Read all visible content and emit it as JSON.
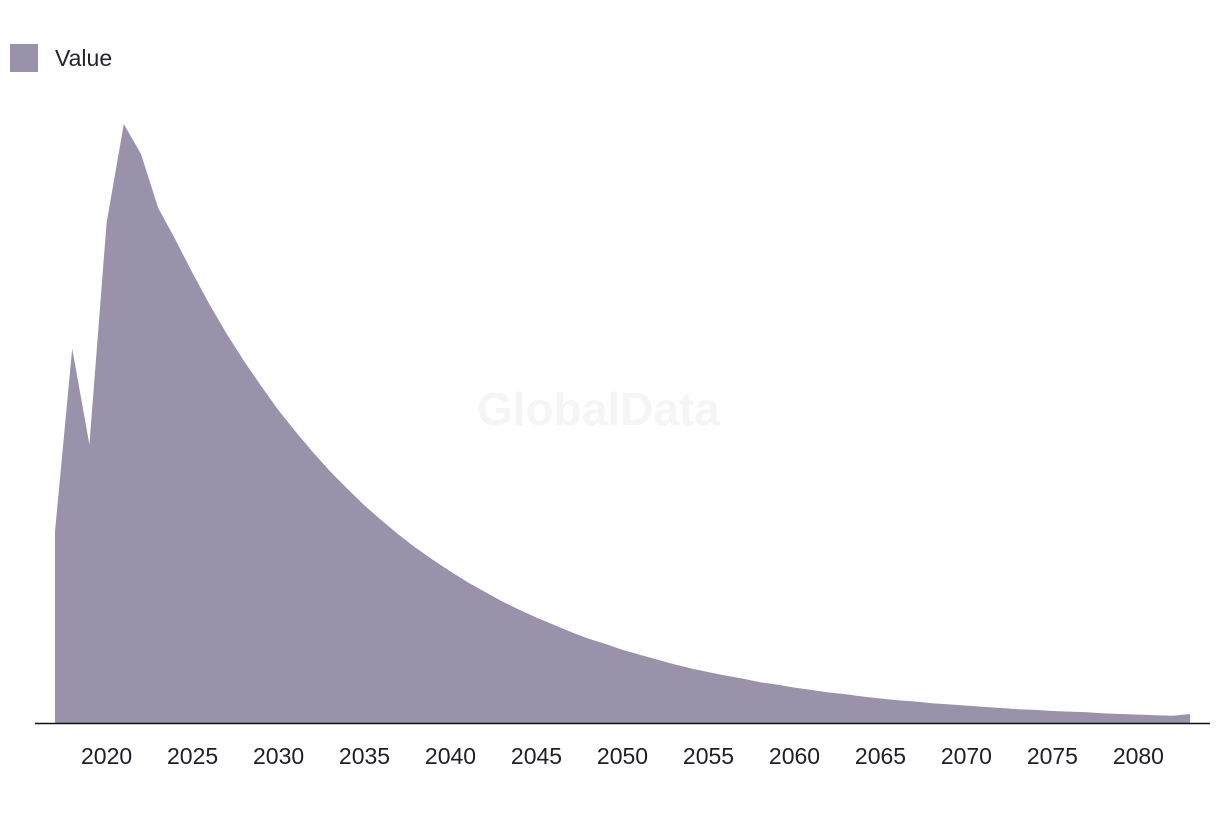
{
  "watermark": "GlobalData",
  "chart_data": {
    "type": "area",
    "legend": {
      "label": "Value",
      "position": "top-left"
    },
    "color": "#9a91aa",
    "axis_color": "#111111",
    "xlim": [
      2017,
      2083
    ],
    "ylim": [
      0,
      1
    ],
    "grid": false,
    "x_ticks": [
      2020,
      2025,
      2030,
      2035,
      2040,
      2045,
      2050,
      2055,
      2060,
      2065,
      2070,
      2075,
      2080
    ],
    "series": [
      {
        "name": "Value",
        "x": [
          2017,
          2018,
          2019,
          2020,
          2021,
          2022,
          2023,
          2024,
          2025,
          2026,
          2027,
          2028,
          2029,
          2030,
          2031,
          2032,
          2033,
          2034,
          2035,
          2036,
          2037,
          2038,
          2039,
          2040,
          2041,
          2042,
          2043,
          2044,
          2045,
          2046,
          2047,
          2048,
          2049,
          2050,
          2051,
          2052,
          2053,
          2054,
          2055,
          2056,
          2057,
          2058,
          2059,
          2060,
          2061,
          2062,
          2063,
          2064,
          2065,
          2066,
          2067,
          2068,
          2069,
          2070,
          2071,
          2072,
          2073,
          2074,
          2075,
          2076,
          2077,
          2078,
          2079,
          2080,
          2081,
          2082,
          2083
        ],
        "values": [
          0.32,
          0.625,
          0.465,
          0.835,
          1.0,
          0.95,
          0.86,
          0.807,
          0.751,
          0.698,
          0.649,
          0.604,
          0.562,
          0.522,
          0.486,
          0.452,
          0.42,
          0.391,
          0.363,
          0.338,
          0.314,
          0.292,
          0.272,
          0.253,
          0.235,
          0.219,
          0.203,
          0.189,
          0.176,
          0.164,
          0.152,
          0.141,
          0.132,
          0.122,
          0.114,
          0.106,
          0.098,
          0.091,
          0.085,
          0.079,
          0.074,
          0.068,
          0.064,
          0.059,
          0.055,
          0.051,
          0.048,
          0.044,
          0.041,
          0.038,
          0.036,
          0.033,
          0.031,
          0.029,
          0.027,
          0.025,
          0.023,
          0.022,
          0.02,
          0.019,
          0.018,
          0.016,
          0.015,
          0.014,
          0.013,
          0.012,
          0.015
        ]
      }
    ]
  }
}
